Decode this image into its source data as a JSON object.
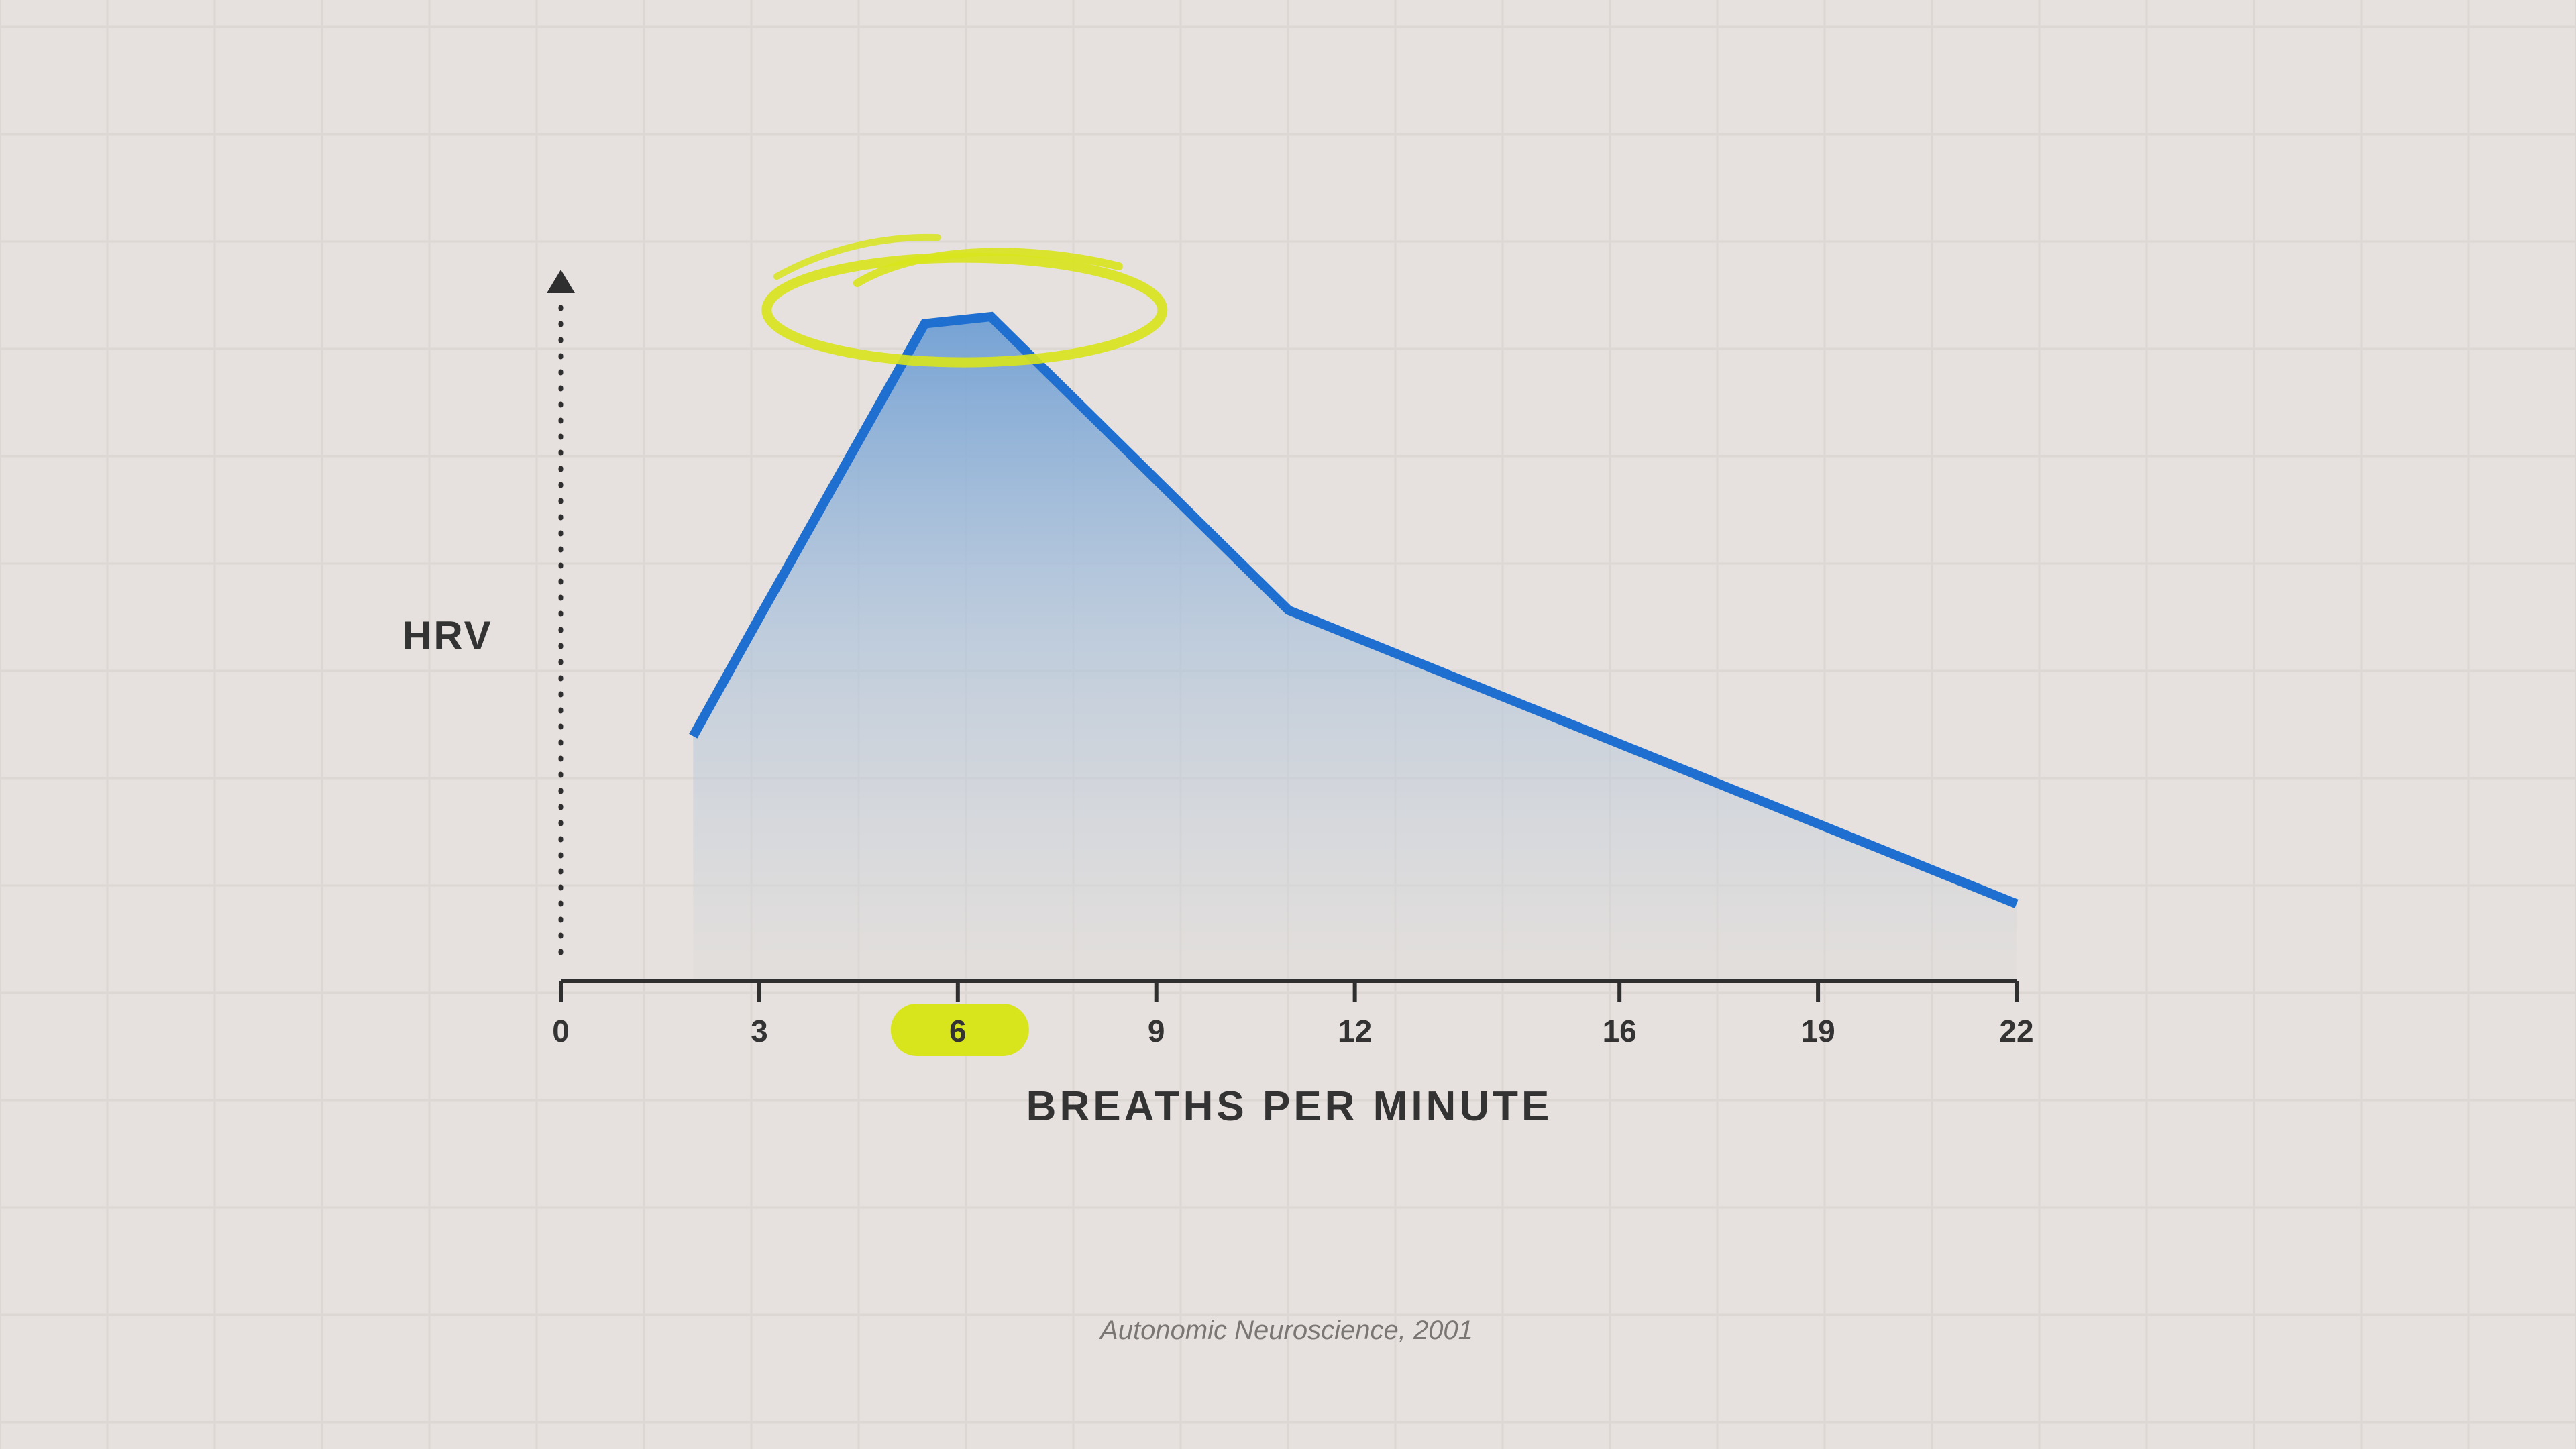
{
  "colors": {
    "background": "#e6e1de",
    "grid": "#ddd7d3",
    "axis": "#2f2f2f",
    "line": "#1f6fd1",
    "fill_top": "#6f9fd4",
    "highlight": "#d8e41c",
    "text": "#333333",
    "source_text": "#7a7674"
  },
  "chart_data": {
    "type": "line",
    "title": "",
    "xlabel": "BREATHS PER MINUTE",
    "ylabel": "HRV",
    "xlim": [
      0,
      22
    ],
    "x_ticks": [
      "0",
      "3",
      "6",
      "9",
      "12",
      "16",
      "19",
      "22"
    ],
    "highlighted_tick": "6",
    "area_fill": true,
    "grid": true,
    "series": [
      {
        "points": [
          {
            "x": 2,
            "y": 0.35
          },
          {
            "x": 3,
            "y": 0.52
          },
          {
            "x": 5.5,
            "y": 0.94
          },
          {
            "x": 6.5,
            "y": 0.95
          },
          {
            "x": 11,
            "y": 0.53
          },
          {
            "x": 22,
            "y": 0.11
          }
        ]
      }
    ],
    "annotation": "peak circled",
    "source": "Autonomic Neuroscience, 2001"
  }
}
